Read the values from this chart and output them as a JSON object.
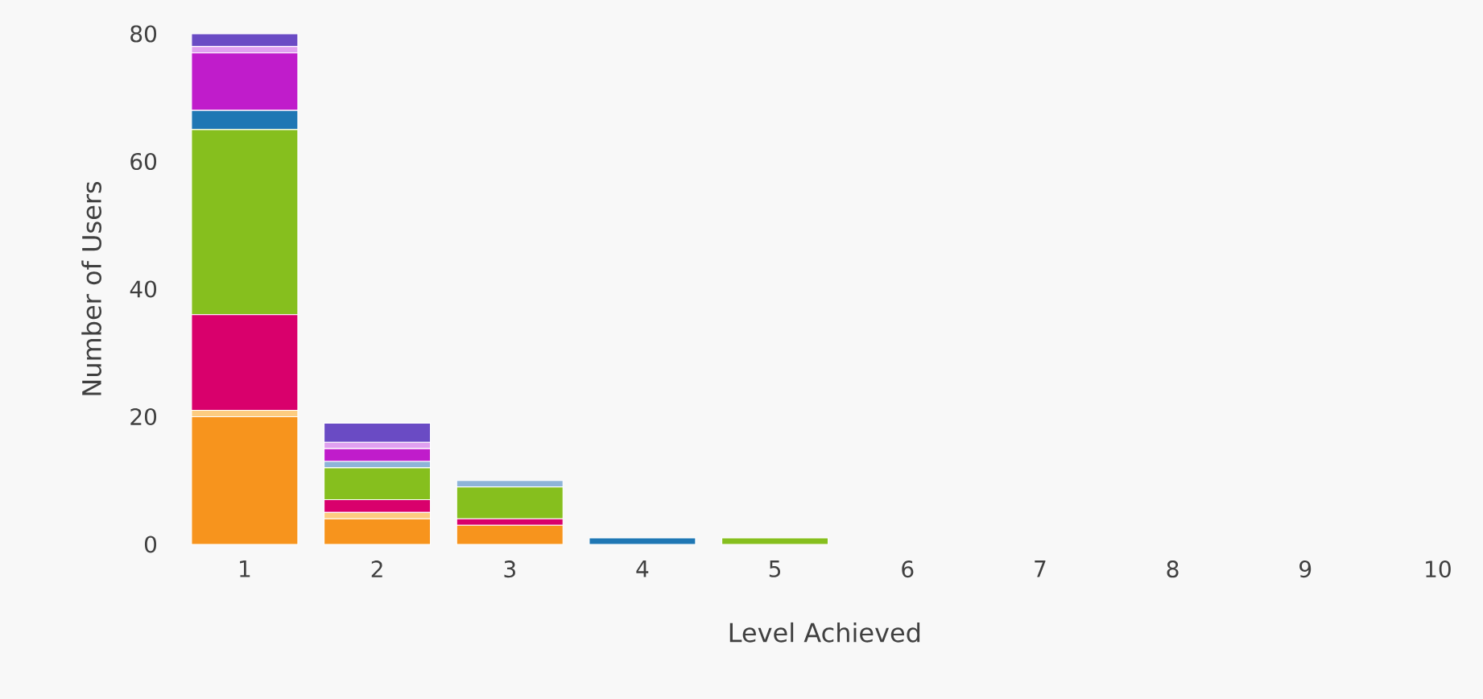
{
  "chart_data": {
    "type": "bar",
    "stacked": true,
    "xlabel": "Level Achieved",
    "ylabel": "Number of Users",
    "categories": [
      "1",
      "2",
      "3",
      "4",
      "5",
      "6",
      "7",
      "8",
      "9",
      "10"
    ],
    "ylim": [
      0,
      80
    ],
    "yticks": [
      0,
      20,
      40,
      60,
      80
    ],
    "series": [
      {
        "color": "#f7941d",
        "values": [
          20,
          4,
          3,
          0,
          0,
          0,
          0,
          0,
          0,
          0
        ]
      },
      {
        "color": "#fdcc80",
        "values": [
          1,
          1,
          0,
          0,
          0,
          0,
          0,
          0,
          0,
          0
        ]
      },
      {
        "color": "#d9006c",
        "values": [
          15,
          2,
          1,
          0,
          0,
          0,
          0,
          0,
          0,
          0
        ]
      },
      {
        "color": "#86bf1e",
        "values": [
          29,
          5,
          5,
          0,
          1,
          0,
          0,
          0,
          0,
          0
        ]
      },
      {
        "color": "#8eb4d8",
        "values": [
          0,
          1,
          1,
          0,
          0,
          0,
          0,
          0,
          0,
          0
        ]
      },
      {
        "color": "#1f77b4",
        "values": [
          3,
          0,
          0,
          1,
          0,
          0,
          0,
          0,
          0,
          0
        ]
      },
      {
        "color": "#c01ccb",
        "values": [
          9,
          2,
          0,
          0,
          0,
          0,
          0,
          0,
          0,
          0
        ]
      },
      {
        "color": "#e0a0f0",
        "values": [
          1,
          1,
          0,
          0,
          0,
          0,
          0,
          0,
          0,
          0
        ]
      },
      {
        "color": "#6a4bc4",
        "values": [
          2,
          3,
          0,
          0,
          0,
          0,
          0,
          0,
          0,
          0
        ]
      }
    ]
  }
}
